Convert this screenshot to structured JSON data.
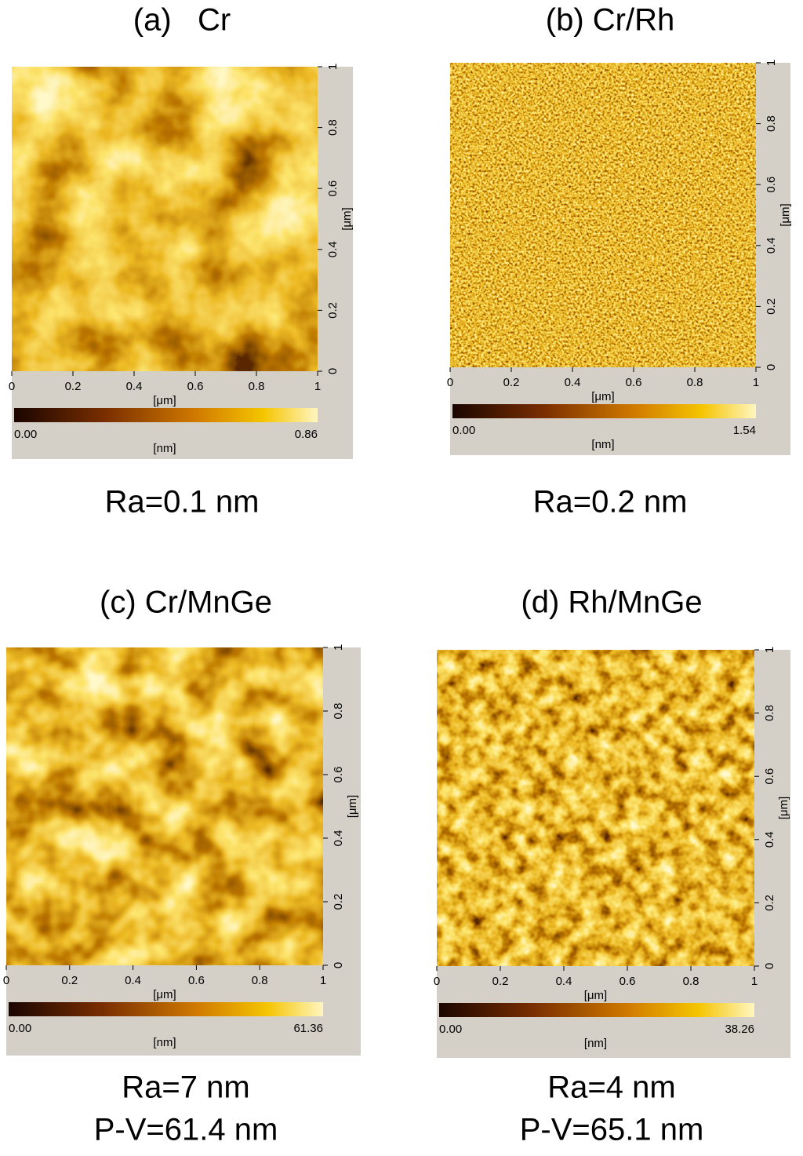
{
  "panels": [
    {
      "title": "(a)   Cr",
      "x_ticks": [
        "0",
        "0.2",
        "0.4",
        "0.6",
        "0.8",
        "1"
      ],
      "y_ticks": [
        "0",
        "0.2",
        "0.4",
        "0.6",
        "0.8",
        "1"
      ],
      "x_unit": "[μm]",
      "y_unit": "[μm]",
      "colorbar_min": "0.00",
      "colorbar_max": "0.86",
      "colorbar_unit": "[nm]",
      "notes": [
        "Ra=0.1 nm"
      ]
    },
    {
      "title": "(b) Cr/Rh",
      "x_ticks": [
        "0",
        "0.2",
        "0.4",
        "0.6",
        "0.8",
        "1"
      ],
      "y_ticks": [
        "0",
        "0.2",
        "0.4",
        "0.6",
        "0.8",
        "1"
      ],
      "x_unit": "[μm]",
      "y_unit": "[μm]",
      "colorbar_min": "0.00",
      "colorbar_max": "1.54",
      "colorbar_unit": "[nm]",
      "notes": [
        "Ra=0.2 nm"
      ]
    },
    {
      "title": "(c) Cr/MnGe",
      "x_ticks": [
        "0",
        "0.2",
        "0.4",
        "0.6",
        "0.8",
        "1"
      ],
      "y_ticks": [
        "0",
        "0.2",
        "0.4",
        "0.6",
        "0.8",
        "1"
      ],
      "x_unit": "[μm]",
      "y_unit": "[μm]",
      "colorbar_min": "0.00",
      "colorbar_max": "61.36",
      "colorbar_unit": "[nm]",
      "notes": [
        "Ra=7 nm",
        "P-V=61.4 nm"
      ]
    },
    {
      "title": "(d) Rh/MnGe",
      "x_ticks": [
        "0",
        "0.2",
        "0.4",
        "0.6",
        "0.8",
        "1"
      ],
      "y_ticks": [
        "0",
        "0.2",
        "0.4",
        "0.6",
        "0.8",
        "1"
      ],
      "x_unit": "[μm]",
      "y_unit": "[μm]",
      "colorbar_min": "0.00",
      "colorbar_max": "38.26",
      "colorbar_unit": "[nm]",
      "notes": [
        "Ra=4 nm",
        "P-V=65.1 nm"
      ]
    }
  ]
}
